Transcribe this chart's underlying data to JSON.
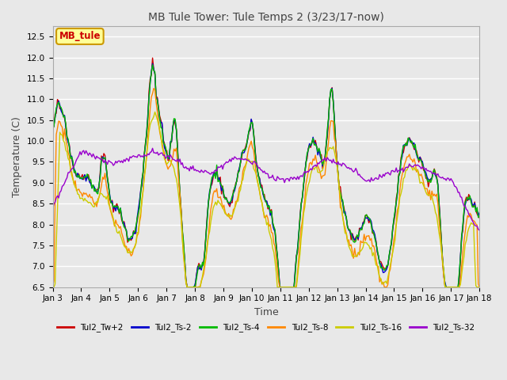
{
  "title": "MB Tule Tower: Tule Temps 2 (3/23/17-now)",
  "xlabel": "Time",
  "ylabel": "Temperature (C)",
  "ylim": [
    6.5,
    12.75
  ],
  "yticks": [
    6.5,
    7.0,
    7.5,
    8.0,
    8.5,
    9.0,
    9.5,
    10.0,
    10.5,
    11.0,
    11.5,
    12.0,
    12.5
  ],
  "xtick_labels": [
    "Jan 3",
    "Jan 4",
    "Jan 5",
    "Jan 6",
    "Jan 7",
    "Jan 8",
    "Jan 9",
    "Jan 10",
    "Jan 11",
    "Jan 12",
    "Jan 13",
    "Jan 14",
    "Jan 15",
    "Jan 16",
    "Jan 17",
    "Jan 18"
  ],
  "legend_label": "MB_tule",
  "legend_text_color": "#cc0000",
  "legend_bg": "#ffff99",
  "legend_border": "#cc9900",
  "series_colors": {
    "Tul2_Tw+2": "#cc0000",
    "Tul2_Ts-2": "#0000cc",
    "Tul2_Ts-4": "#00bb00",
    "Tul2_Ts-8": "#ff8800",
    "Tul2_Ts-16": "#cccc00",
    "Tul2_Ts-32": "#9900cc"
  },
  "bg_color": "#e8e8e8",
  "plot_bg_color": "#e8e8e8",
  "grid_color": "#ffffff",
  "figsize": [
    6.4,
    4.8
  ],
  "dpi": 100
}
